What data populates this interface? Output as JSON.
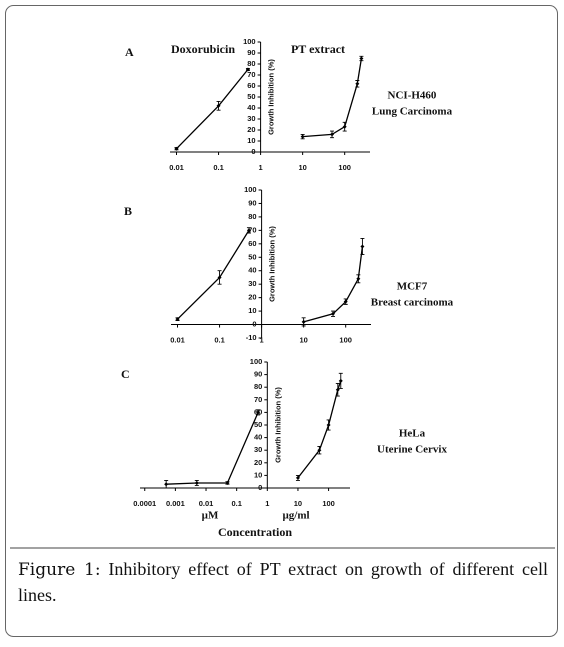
{
  "chart_data": [
    {
      "type": "line",
      "label": "A",
      "xscale": "log",
      "xlim": [
        0.007,
        400
      ],
      "xticks": [
        0.01,
        0.1,
        1,
        10,
        100
      ],
      "ylim": [
        0,
        100
      ],
      "yticks": [
        0,
        10,
        20,
        30,
        40,
        50,
        60,
        70,
        80,
        90,
        100
      ],
      "yaxis_at": 1,
      "ylabel": "Growth Inhibition (%)",
      "annotations": [
        "NCI-H460",
        "Lung Carcinoma"
      ],
      "color": "#000000",
      "series": [
        {
          "name": "Doxorubicin",
          "x": [
            0.01,
            0.1,
            0.5
          ],
          "values": [
            3,
            42,
            75
          ],
          "errors": [
            1,
            4,
            1
          ]
        },
        {
          "name": "PT extract",
          "x": [
            10,
            50,
            100,
            200,
            250
          ],
          "values": [
            14,
            16,
            23,
            62,
            85
          ],
          "errors": [
            2,
            3,
            4,
            3,
            2
          ]
        }
      ]
    },
    {
      "type": "line",
      "label": "B",
      "xscale": "log",
      "xlim": [
        0.007,
        400
      ],
      "xticks": [
        0.01,
        0.1,
        1,
        10,
        100
      ],
      "ylim": [
        -10,
        100
      ],
      "yticks": [
        -10,
        0,
        10,
        20,
        30,
        40,
        50,
        60,
        70,
        80,
        90,
        100
      ],
      "yaxis_at": 1,
      "ylabel": "Growth Inhibition (%)",
      "annotations": [
        "MCF7",
        "Breast carcinoma"
      ],
      "color": "#000000",
      "series": [
        {
          "x": [
            0.01,
            0.1,
            0.5
          ],
          "values": [
            4,
            35,
            70
          ],
          "errors": [
            1,
            5,
            2
          ]
        },
        {
          "x": [
            10,
            50,
            100,
            200,
            250
          ],
          "values": [
            2,
            8,
            17,
            34,
            58
          ],
          "errors": [
            3,
            2,
            2,
            3,
            6
          ]
        }
      ]
    },
    {
      "type": "line",
      "label": "C",
      "xscale": "log",
      "xlim": [
        7e-05,
        500
      ],
      "xticks": [
        0.0001,
        0.001,
        0.01,
        0.1,
        1,
        10,
        100
      ],
      "ylim": [
        0,
        100
      ],
      "yticks": [
        0,
        10,
        20,
        30,
        40,
        50,
        60,
        70,
        80,
        90,
        100
      ],
      "yaxis_at": 1,
      "ylabel": "Growth Inhibition (%)",
      "annotations": [
        "HeLa",
        "Uterine Cervix"
      ],
      "color": "#000000",
      "unit_labels": [
        "µM",
        "µg/ml"
      ],
      "xlabel": "Concentration",
      "series": [
        {
          "x": [
            0.0005,
            0.005,
            0.05,
            0.5
          ],
          "values": [
            3,
            4,
            4,
            60
          ],
          "errors": [
            3,
            2,
            1,
            2
          ]
        },
        {
          "x": [
            10,
            50,
            100,
            200,
            250
          ],
          "values": [
            8,
            30,
            50,
            78,
            85
          ],
          "errors": [
            2,
            3,
            4,
            5,
            6
          ]
        }
      ]
    }
  ],
  "caption": {
    "label": "Figure 1:",
    "text": "Inhibitory effect of PT extract on growth of different cell lines."
  }
}
